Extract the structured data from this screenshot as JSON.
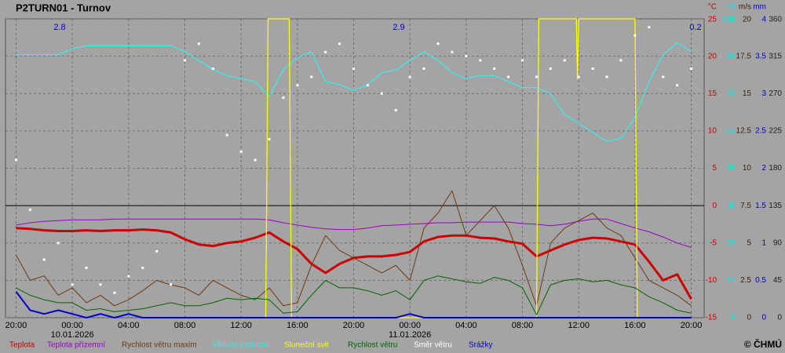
{
  "chart_data": {
    "type": "line",
    "title": "P2TURN01 - Turnov",
    "copyright": "© ČHMÚ",
    "background": "#a4a4a4",
    "grid": true,
    "zero_line": true,
    "top_labels": [
      "2.8",
      "2.9",
      "0.2"
    ],
    "top_labels_color": "#0000cc",
    "xlim": [
      "2026-01-09T19:15",
      "2026-01-11T20:55"
    ],
    "xticks": [
      {
        "value": "2026-01-09T20:00",
        "label": "20:00"
      },
      {
        "value": "2026-01-10T00:00",
        "label": "00:00"
      },
      {
        "value": "2026-01-10T04:00",
        "label": "04:00"
      },
      {
        "value": "2026-01-10T08:00",
        "label": "08:00"
      },
      {
        "value": "2026-01-10T12:00",
        "label": "12:00"
      },
      {
        "value": "2026-01-10T16:00",
        "label": "16:00"
      },
      {
        "value": "2026-01-10T20:00",
        "label": "20:00"
      },
      {
        "value": "2026-01-11T00:00",
        "label": "00:00"
      },
      {
        "value": "2026-01-11T04:00",
        "label": "04:00"
      },
      {
        "value": "2026-01-11T08:00",
        "label": "08:00"
      },
      {
        "value": "2026-01-11T12:00",
        "label": "12:00"
      },
      {
        "value": "2026-01-11T16:00",
        "label": "16:00"
      },
      {
        "value": "2026-01-11T20:00",
        "label": "20:00"
      }
    ],
    "date_labels": [
      {
        "value": "2026-01-10T00:00",
        "label": "10.01.2026"
      },
      {
        "value": "2026-01-11T00:00",
        "label": "11.01.2026"
      }
    ],
    "axes": [
      {
        "unit": "°C",
        "color": "#cc0000",
        "ylim": [
          -15,
          25
        ],
        "yticks": [
          -15,
          -10,
          -5,
          0,
          5,
          10,
          15,
          20,
          25
        ]
      },
      {
        "unit": "%",
        "color": "#00e8e8",
        "ylim": [
          0,
          100
        ],
        "yticks": [
          0,
          {
            "value": 12.5,
            "label": "13"
          },
          25,
          {
            "value": 37.5,
            "label": "38"
          },
          50,
          {
            "value": 62.5,
            "label": "63"
          },
          75,
          {
            "value": 87.5,
            "label": "88"
          },
          100
        ]
      },
      {
        "unit": "m/s",
        "color": "#3a2410",
        "ylim": [
          0,
          20
        ],
        "yticks": [
          0,
          2.5,
          5,
          7.5,
          10,
          12.5,
          15,
          17.5,
          20
        ]
      },
      {
        "unit": "mm",
        "color": "#0000cc",
        "ylim": [
          0,
          4
        ],
        "yticks": [
          0,
          0.5,
          1,
          1.5,
          2,
          2.5,
          3,
          3.5,
          4
        ]
      },
      {
        "color": "#202020",
        "ylim": [
          0,
          360
        ],
        "yticks": [
          0,
          45,
          90,
          135,
          180,
          225,
          270,
          315,
          360
        ]
      }
    ],
    "x": [
      "2026-01-09T20:00",
      "2026-01-09T21:00",
      "2026-01-09T22:00",
      "2026-01-09T23:00",
      "2026-01-10T00:00",
      "2026-01-10T01:00",
      "2026-01-10T02:00",
      "2026-01-10T03:00",
      "2026-01-10T04:00",
      "2026-01-10T05:00",
      "2026-01-10T06:00",
      "2026-01-10T07:00",
      "2026-01-10T08:00",
      "2026-01-10T09:00",
      "2026-01-10T10:00",
      "2026-01-10T11:00",
      "2026-01-10T12:00",
      "2026-01-10T13:00",
      "2026-01-10T14:00",
      "2026-01-10T15:00",
      "2026-01-10T16:00",
      "2026-01-10T17:00",
      "2026-01-10T18:00",
      "2026-01-10T19:00",
      "2026-01-10T20:00",
      "2026-01-10T21:00",
      "2026-01-10T22:00",
      "2026-01-10T23:00",
      "2026-01-11T00:00",
      "2026-01-11T01:00",
      "2026-01-11T02:00",
      "2026-01-11T03:00",
      "2026-01-11T04:00",
      "2026-01-11T05:00",
      "2026-01-11T06:00",
      "2026-01-11T07:00",
      "2026-01-11T08:00",
      "2026-01-11T09:00",
      "2026-01-11T10:00",
      "2026-01-11T11:00",
      "2026-01-11T12:00",
      "2026-01-11T13:00",
      "2026-01-11T14:00",
      "2026-01-11T15:00",
      "2026-01-11T16:00",
      "2026-01-11T17:00",
      "2026-01-11T18:00",
      "2026-01-11T19:00",
      "2026-01-11T20:00"
    ],
    "series": [
      {
        "name": "Teplota",
        "color": "#cc0000",
        "axis": 0,
        "type": "line",
        "width": 3,
        "values": [
          -3.0,
          -3.1,
          -3.3,
          -3.4,
          -3.4,
          -3.3,
          -3.4,
          -3.3,
          -3.3,
          -3.2,
          -3.3,
          -3.6,
          -4.5,
          -5.2,
          -5.4,
          -5.0,
          -4.8,
          -4.3,
          -3.6,
          -4.8,
          -5.8,
          -7.8,
          -9.0,
          -7.8,
          -7.0,
          -6.8,
          -6.8,
          -6.6,
          -6.2,
          -4.8,
          -4.2,
          -4.0,
          -4.0,
          -4.3,
          -4.4,
          -4.8,
          -5.1,
          -6.8,
          -6.0,
          -5.2,
          -4.6,
          -4.3,
          -4.4,
          -4.8,
          -5.2,
          -7.5,
          -10.0,
          -9.2,
          -12.5
        ]
      },
      {
        "name": "Teplota přízemní",
        "color": "#9a00c8",
        "axis": 0,
        "type": "line",
        "width": 1,
        "values": [
          -2.6,
          -2.3,
          -2.1,
          -2.0,
          -1.9,
          -1.9,
          -1.9,
          -1.8,
          -1.8,
          -1.8,
          -1.8,
          -1.8,
          -1.8,
          -1.8,
          -1.8,
          -1.8,
          -1.8,
          -1.8,
          -1.9,
          -2.3,
          -2.6,
          -2.9,
          -3.1,
          -3.2,
          -3.2,
          -3.0,
          -2.7,
          -2.6,
          -2.5,
          -2.4,
          -2.3,
          -2.3,
          -2.2,
          -2.2,
          -2.2,
          -2.2,
          -2.4,
          -2.5,
          -2.7,
          -2.5,
          -2.1,
          -1.8,
          -1.8,
          -2.4,
          -3.0,
          -3.5,
          -4.2,
          -5.0,
          -5.6
        ]
      },
      {
        "name": "Rychlost větru maxim",
        "color": "#6a3a14",
        "axis": 2,
        "type": "line",
        "width": 1,
        "values": [
          4.2,
          2.5,
          2.8,
          1.5,
          2.0,
          1.0,
          1.5,
          0.8,
          1.2,
          1.8,
          2.5,
          2.2,
          2.0,
          1.5,
          2.5,
          2.0,
          1.5,
          1.2,
          2.0,
          0.8,
          1.0,
          3.5,
          5.5,
          4.5,
          4.0,
          3.5,
          3.0,
          3.5,
          2.5,
          6.0,
          7.0,
          8.5,
          5.5,
          6.5,
          7.5,
          6.0,
          3.5,
          0.8,
          5.0,
          6.0,
          6.5,
          7.0,
          6.0,
          5.5,
          4.0,
          2.5,
          2.0,
          1.5,
          0.8
        ]
      },
      {
        "name": "Vlhkost vzduchu",
        "color": "#40e8e8",
        "axis": 1,
        "type": "line",
        "width": 1.3,
        "values": [
          88,
          88,
          88,
          88,
          90,
          91,
          91,
          91,
          91,
          91,
          91,
          91,
          89,
          86,
          83,
          81,
          80,
          79,
          74,
          83,
          87,
          89,
          79,
          78,
          76,
          78,
          82,
          83,
          86,
          89,
          86,
          82,
          80,
          81,
          81,
          79,
          77,
          77,
          75,
          68,
          65,
          62,
          59,
          60,
          67,
          79,
          88,
          92,
          89
        ]
      },
      {
        "name": "Sluneční svit",
        "color": "#ffff00",
        "axis": 1,
        "type": "line",
        "width": 1.3,
        "x": [
          "2026-01-10T13:45",
          "2026-01-10T13:55",
          "2026-01-10T15:25",
          "2026-01-10T15:35",
          "2026-01-11T09:00",
          "2026-01-11T09:10",
          "2026-01-11T11:50",
          "2026-01-11T11:55",
          "2026-01-11T12:00",
          "2026-01-11T16:00",
          "2026-01-11T16:10"
        ],
        "values": [
          0,
          100,
          100,
          0,
          0,
          100,
          100,
          80,
          100,
          100,
          0
        ]
      },
      {
        "name": "Rychlost větru",
        "color": "#006600",
        "axis": 2,
        "type": "line",
        "width": 1,
        "values": [
          2.0,
          1.5,
          1.2,
          1.0,
          1.0,
          0.5,
          0.6,
          0.4,
          0.5,
          0.6,
          0.8,
          1.0,
          0.8,
          0.8,
          1.0,
          1.3,
          1.2,
          1.3,
          1.2,
          0.3,
          0.4,
          1.5,
          2.5,
          2.0,
          2.0,
          1.8,
          1.5,
          1.8,
          1.2,
          2.5,
          2.8,
          2.6,
          2.4,
          2.3,
          2.7,
          2.5,
          2.0,
          0.2,
          2.2,
          2.5,
          2.6,
          2.4,
          2.5,
          2.2,
          2.0,
          1.4,
          1.0,
          0.5,
          0.3
        ]
      },
      {
        "name": "Směr větru",
        "color": "#ffffff",
        "axis": 4,
        "type": "scatter",
        "values": [
          190,
          130,
          70,
          90,
          40,
          60,
          40,
          30,
          50,
          60,
          80,
          40,
          310,
          330,
          300,
          220,
          200,
          190,
          215,
          265,
          280,
          290,
          320,
          330,
          300,
          280,
          270,
          250,
          290,
          300,
          330,
          320,
          315,
          310,
          300,
          290,
          310,
          290,
          300,
          310,
          290,
          300,
          290,
          310,
          340,
          350,
          290,
          280,
          300
        ]
      },
      {
        "name": "Srážky",
        "color": "#0000cc",
        "axis": 3,
        "type": "line",
        "width": 2,
        "values": [
          0.35,
          0.1,
          0.05,
          0.1,
          0.05,
          0,
          0.05,
          0,
          0.05,
          0,
          0,
          0,
          0,
          0,
          0,
          0,
          0,
          0,
          0,
          0,
          0,
          0,
          0,
          0,
          0,
          0,
          0,
          0,
          0.05,
          0,
          0,
          0,
          0,
          0,
          0,
          0,
          0,
          0,
          0,
          0,
          0,
          0,
          0,
          0,
          0,
          0,
          0,
          0,
          0
        ]
      }
    ]
  }
}
